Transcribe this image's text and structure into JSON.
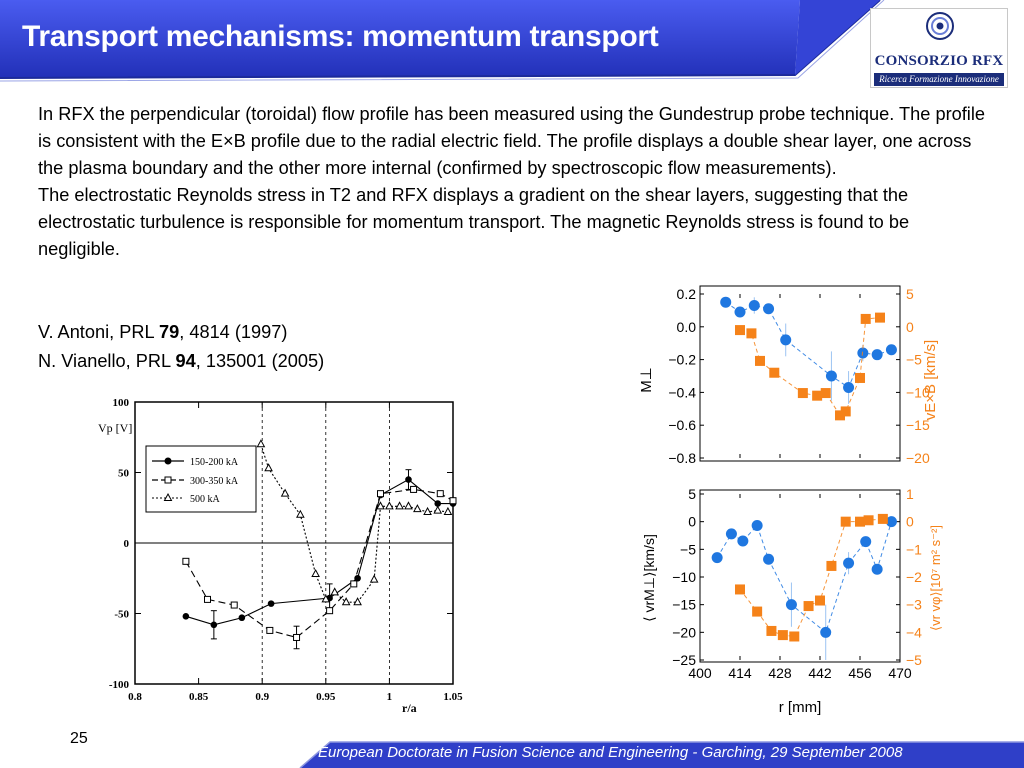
{
  "slide": {
    "title": "Transport mechanisms: momentum transport",
    "paragraph1": "In RFX the perpendicular (toroidal) flow profile has been measured using the Gundestrup probe technique. The profile is consistent with the E×B profile due to the radial electric field. The profile displays a double shear layer, one across the plasma boundary and the other more internal (confirmed by spectroscopic flow measurements).",
    "paragraph2": "The electrostatic Reynolds stress in T2 and RFX displays a gradient on the shear layers, suggesting that the electrostatic turbulence is responsible for momentum transport. The magnetic Reynolds stress is found to be negligible.",
    "refs": [
      {
        "pre": "V. Antoni, PRL ",
        "vol": "79",
        "post": ", 4814 (1997)"
      },
      {
        "pre": "N. Vianello, PRL ",
        "vol": "94",
        "post": ", 135001 (2005)"
      }
    ],
    "slide_number": "25",
    "footer": "European Doctorate in Fusion Science and Engineering  -  Garching, 29 September 2008"
  },
  "logo": {
    "name": "CONSORZIO RFX",
    "tagline": "Ricerca Formazione Innovazione"
  },
  "colors": {
    "header": "#2f3fc8",
    "footer": "#2f3fc8",
    "blue": "#1f77e0",
    "orange": "#f58219"
  },
  "chart_data": [
    {
      "type": "line",
      "xlabel": "r/a",
      "ylabel": "Vp [V]",
      "xlim": [
        0.8,
        1.05
      ],
      "ylim": [
        -100,
        100
      ],
      "xticks": [
        "0.8",
        "0.85",
        "0.9",
        "0.95",
        "1",
        "1.05"
      ],
      "yticks": [
        "100",
        "50",
        "0",
        "-50",
        "-100"
      ],
      "legend_position": "upper-left",
      "series": [
        {
          "name": "150-200 kA",
          "marker": "filled-circle",
          "x": [
            0.84,
            0.862,
            0.884,
            0.907,
            0.953,
            0.975,
            0.993,
            1.015,
            1.038,
            1.05
          ],
          "y": [
            -52,
            -58,
            -53,
            -43,
            -39,
            -25,
            34,
            45,
            28,
            28
          ],
          "err": [
            0,
            10,
            0,
            0,
            10,
            0,
            0,
            7,
            0,
            0
          ]
        },
        {
          "name": "300-350 kA",
          "marker": "open-square",
          "x": [
            0.84,
            0.857,
            0.878,
            0.906,
            0.927,
            0.953,
            0.972,
            0.993,
            1.019,
            1.04,
            1.05
          ],
          "y": [
            -13,
            -40,
            -44,
            -62,
            -67,
            -48,
            -29,
            35,
            38,
            35,
            30
          ],
          "err": [
            0,
            0,
            0,
            0,
            8,
            0,
            0,
            0,
            0,
            0,
            0
          ]
        },
        {
          "name": "500 kA",
          "marker": "open-triangle",
          "x": [
            0.899,
            0.905,
            0.918,
            0.93,
            0.942,
            0.95,
            0.957,
            0.966,
            0.975,
            0.988,
            0.993,
            1.0,
            1.008,
            1.015,
            1.022,
            1.03,
            1.038,
            1.046
          ],
          "y": [
            70,
            53,
            35,
            20,
            -22,
            -40,
            -35,
            -42,
            -42,
            -26,
            26,
            26,
            26,
            26,
            24,
            22,
            23,
            22
          ]
        }
      ]
    },
    {
      "type": "scatter",
      "xlim": [
        400,
        470
      ],
      "ylim_left": [
        -0.8,
        0.2
      ],
      "ylim_right": [
        -20,
        5
      ],
      "ylabel_left": "M⊥",
      "ylabel_right": "vE×B [km/s]",
      "yticks_left": [
        "0.2",
        "0.0",
        "−0.2",
        "−0.4",
        "−0.6",
        "−0.8"
      ],
      "yticks_right": [
        "5",
        "0",
        "−5",
        "−10",
        "−15",
        "−20"
      ],
      "series": [
        {
          "name": "M⊥",
          "axis": "left",
          "color": "#1f77e0",
          "x": [
            409,
            414,
            419,
            424,
            430,
            446,
            452,
            457,
            462,
            467
          ],
          "y": [
            0.15,
            0.09,
            0.13,
            0.11,
            -0.08,
            -0.3,
            -0.37,
            -0.16,
            -0.17,
            -0.14
          ],
          "err": [
            0,
            0,
            0.05,
            0,
            0.1,
            0.15,
            0.1,
            0.05,
            0,
            0
          ]
        },
        {
          "name": "vE×B",
          "axis": "right",
          "color": "#f58219",
          "x": [
            414,
            418,
            421,
            426,
            436,
            441,
            444,
            449,
            451,
            456,
            458,
            463
          ],
          "y": [
            -0.5,
            -1,
            -5.2,
            -7,
            -10.1,
            -10.5,
            -10.1,
            -13.5,
            -12.9,
            -7.8,
            1.2,
            1.4
          ]
        }
      ]
    },
    {
      "type": "scatter",
      "xlabel": "r [mm]",
      "xlim": [
        400,
        470
      ],
      "xticks": [
        "400",
        "414",
        "428",
        "442",
        "456",
        "470"
      ],
      "ylim_left": [
        -25,
        5
      ],
      "ylim_right": [
        -5,
        1
      ],
      "ylabel_left": "⟨ vrM⊥⟩[km/s]",
      "ylabel_right": "⟨vr vφ⟩[10⁷ m² s⁻²]",
      "yticks_left": [
        "5",
        "0",
        "−5",
        "−10",
        "−15",
        "−20",
        "−25"
      ],
      "yticks_right": [
        "1",
        "0",
        "−1",
        "−2",
        "−3",
        "−4",
        "−5"
      ],
      "series": [
        {
          "name": "⟨vrM⊥⟩",
          "axis": "left",
          "color": "#1f77e0",
          "x": [
            406,
            411,
            415,
            420,
            424,
            432,
            444,
            452,
            458,
            462,
            467
          ],
          "y": [
            -6.5,
            -2.2,
            -3.5,
            -0.7,
            -6.8,
            -15,
            -20,
            -7.5,
            -3.6,
            -8.6,
            0
          ],
          "err": [
            0,
            0,
            0,
            0,
            0,
            4,
            5,
            2,
            0,
            0,
            0
          ]
        },
        {
          "name": "⟨vr vφ⟩",
          "axis": "right",
          "color": "#f58219",
          "x": [
            414,
            420,
            425,
            429,
            433,
            438,
            442,
            446,
            451,
            456,
            459,
            464
          ],
          "y": [
            -2.45,
            -3.25,
            -3.95,
            -4.1,
            -4.15,
            -3.05,
            -2.85,
            -1.6,
            0,
            0,
            0.05,
            0.1
          ]
        }
      ]
    }
  ]
}
